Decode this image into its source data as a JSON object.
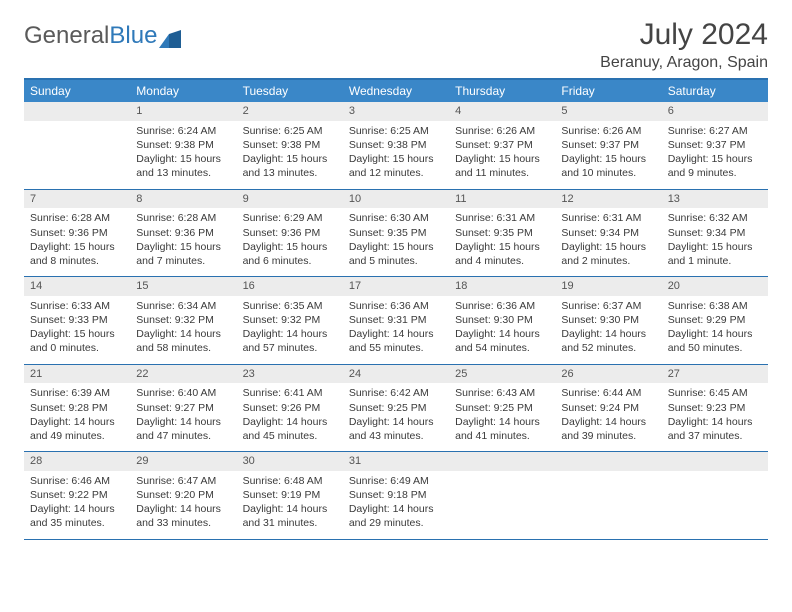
{
  "brand": {
    "part1": "General",
    "part2": "Blue"
  },
  "title": "July 2024",
  "location": "Beranuy, Aragon, Spain",
  "colors": {
    "header_bar": "#3a87c8",
    "rule": "#2a71b0",
    "daynum_bg": "#ececec",
    "text": "#3a3a3a"
  },
  "days_of_week": [
    "Sunday",
    "Monday",
    "Tuesday",
    "Wednesday",
    "Thursday",
    "Friday",
    "Saturday"
  ],
  "first_weekday_index": 1,
  "days": [
    {
      "n": 1,
      "sunrise": "6:24 AM",
      "sunset": "9:38 PM",
      "daylight": "15 hours and 13 minutes."
    },
    {
      "n": 2,
      "sunrise": "6:25 AM",
      "sunset": "9:38 PM",
      "daylight": "15 hours and 13 minutes."
    },
    {
      "n": 3,
      "sunrise": "6:25 AM",
      "sunset": "9:38 PM",
      "daylight": "15 hours and 12 minutes."
    },
    {
      "n": 4,
      "sunrise": "6:26 AM",
      "sunset": "9:37 PM",
      "daylight": "15 hours and 11 minutes."
    },
    {
      "n": 5,
      "sunrise": "6:26 AM",
      "sunset": "9:37 PM",
      "daylight": "15 hours and 10 minutes."
    },
    {
      "n": 6,
      "sunrise": "6:27 AM",
      "sunset": "9:37 PM",
      "daylight": "15 hours and 9 minutes."
    },
    {
      "n": 7,
      "sunrise": "6:28 AM",
      "sunset": "9:36 PM",
      "daylight": "15 hours and 8 minutes."
    },
    {
      "n": 8,
      "sunrise": "6:28 AM",
      "sunset": "9:36 PM",
      "daylight": "15 hours and 7 minutes."
    },
    {
      "n": 9,
      "sunrise": "6:29 AM",
      "sunset": "9:36 PM",
      "daylight": "15 hours and 6 minutes."
    },
    {
      "n": 10,
      "sunrise": "6:30 AM",
      "sunset": "9:35 PM",
      "daylight": "15 hours and 5 minutes."
    },
    {
      "n": 11,
      "sunrise": "6:31 AM",
      "sunset": "9:35 PM",
      "daylight": "15 hours and 4 minutes."
    },
    {
      "n": 12,
      "sunrise": "6:31 AM",
      "sunset": "9:34 PM",
      "daylight": "15 hours and 2 minutes."
    },
    {
      "n": 13,
      "sunrise": "6:32 AM",
      "sunset": "9:34 PM",
      "daylight": "15 hours and 1 minute."
    },
    {
      "n": 14,
      "sunrise": "6:33 AM",
      "sunset": "9:33 PM",
      "daylight": "15 hours and 0 minutes."
    },
    {
      "n": 15,
      "sunrise": "6:34 AM",
      "sunset": "9:32 PM",
      "daylight": "14 hours and 58 minutes."
    },
    {
      "n": 16,
      "sunrise": "6:35 AM",
      "sunset": "9:32 PM",
      "daylight": "14 hours and 57 minutes."
    },
    {
      "n": 17,
      "sunrise": "6:36 AM",
      "sunset": "9:31 PM",
      "daylight": "14 hours and 55 minutes."
    },
    {
      "n": 18,
      "sunrise": "6:36 AM",
      "sunset": "9:30 PM",
      "daylight": "14 hours and 54 minutes."
    },
    {
      "n": 19,
      "sunrise": "6:37 AM",
      "sunset": "9:30 PM",
      "daylight": "14 hours and 52 minutes."
    },
    {
      "n": 20,
      "sunrise": "6:38 AM",
      "sunset": "9:29 PM",
      "daylight": "14 hours and 50 minutes."
    },
    {
      "n": 21,
      "sunrise": "6:39 AM",
      "sunset": "9:28 PM",
      "daylight": "14 hours and 49 minutes."
    },
    {
      "n": 22,
      "sunrise": "6:40 AM",
      "sunset": "9:27 PM",
      "daylight": "14 hours and 47 minutes."
    },
    {
      "n": 23,
      "sunrise": "6:41 AM",
      "sunset": "9:26 PM",
      "daylight": "14 hours and 45 minutes."
    },
    {
      "n": 24,
      "sunrise": "6:42 AM",
      "sunset": "9:25 PM",
      "daylight": "14 hours and 43 minutes."
    },
    {
      "n": 25,
      "sunrise": "6:43 AM",
      "sunset": "9:25 PM",
      "daylight": "14 hours and 41 minutes."
    },
    {
      "n": 26,
      "sunrise": "6:44 AM",
      "sunset": "9:24 PM",
      "daylight": "14 hours and 39 minutes."
    },
    {
      "n": 27,
      "sunrise": "6:45 AM",
      "sunset": "9:23 PM",
      "daylight": "14 hours and 37 minutes."
    },
    {
      "n": 28,
      "sunrise": "6:46 AM",
      "sunset": "9:22 PM",
      "daylight": "14 hours and 35 minutes."
    },
    {
      "n": 29,
      "sunrise": "6:47 AM",
      "sunset": "9:20 PM",
      "daylight": "14 hours and 33 minutes."
    },
    {
      "n": 30,
      "sunrise": "6:48 AM",
      "sunset": "9:19 PM",
      "daylight": "14 hours and 31 minutes."
    },
    {
      "n": 31,
      "sunrise": "6:49 AM",
      "sunset": "9:18 PM",
      "daylight": "14 hours and 29 minutes."
    }
  ],
  "labels": {
    "sunrise": "Sunrise:",
    "sunset": "Sunset:",
    "daylight": "Daylight:"
  }
}
